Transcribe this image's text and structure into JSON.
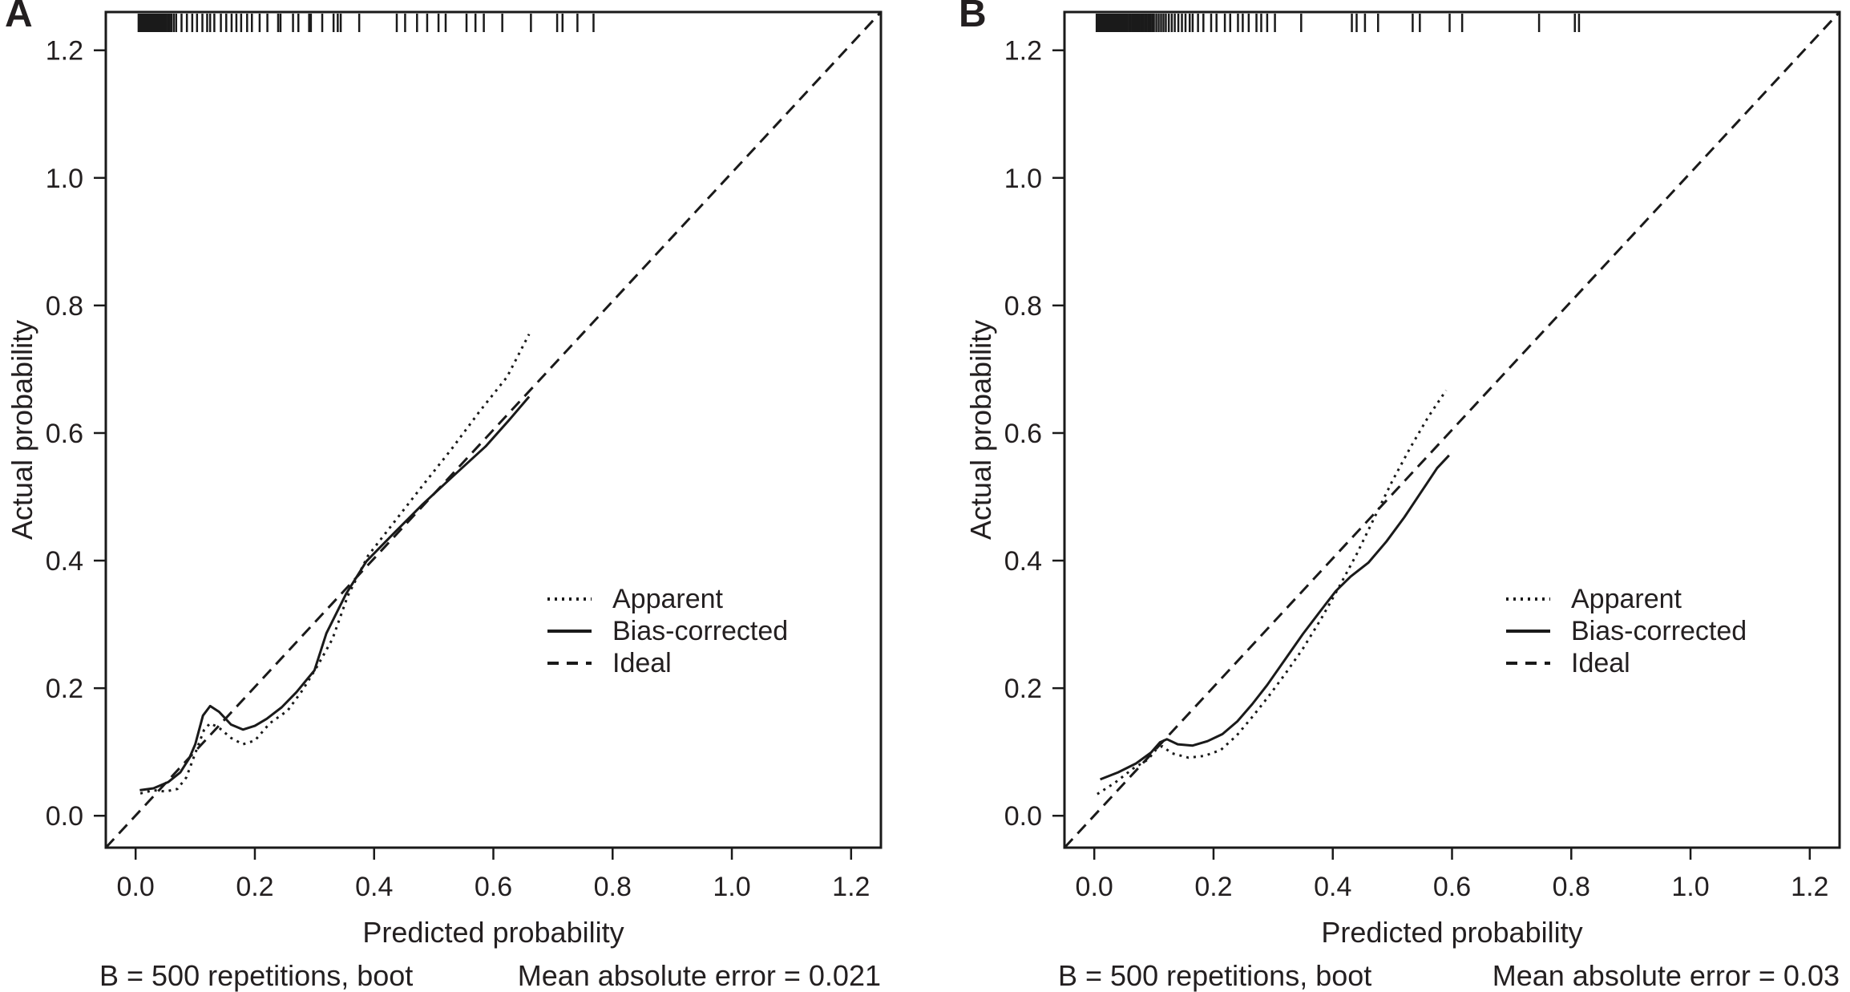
{
  "figure": {
    "ink_color": "#231f20",
    "line_color": "#1a1a1a",
    "background": "#ffffff"
  },
  "chart_data": [
    {
      "panel_label": "A",
      "type": "line",
      "title": "",
      "xlabel": "Predicted probability",
      "ylabel": "Actual probability",
      "xlim": [
        -0.05,
        1.25
      ],
      "ylim": [
        -0.05,
        1.26
      ],
      "xticks": [
        0.0,
        0.2,
        0.4,
        0.6,
        0.8,
        1.0,
        1.2
      ],
      "yticks": [
        0.0,
        0.2,
        0.4,
        0.6,
        0.8,
        1.0,
        1.2
      ],
      "grid": false,
      "legend_position": "right-center",
      "b_repetitions": 500,
      "mean_absolute_error": 0.021,
      "footer_left": "B = 500 repetitions, boot",
      "footer_right": "Mean absolute error = 0.021",
      "series": [
        {
          "name": "Apparent",
          "style": "dotted",
          "points": [
            [
              0.008,
              0.035
            ],
            [
              0.03,
              0.04
            ],
            [
              0.05,
              0.038
            ],
            [
              0.07,
              0.042
            ],
            [
              0.085,
              0.06
            ],
            [
              0.1,
              0.098
            ],
            [
              0.115,
              0.135
            ],
            [
              0.125,
              0.145
            ],
            [
              0.14,
              0.138
            ],
            [
              0.16,
              0.122
            ],
            [
              0.18,
              0.112
            ],
            [
              0.2,
              0.118
            ],
            [
              0.225,
              0.145
            ],
            [
              0.255,
              0.165
            ],
            [
              0.28,
              0.197
            ],
            [
              0.305,
              0.235
            ],
            [
              0.33,
              0.277
            ],
            [
              0.356,
              0.345
            ],
            [
              0.39,
              0.408
            ],
            [
              0.435,
              0.462
            ],
            [
              0.48,
              0.516
            ],
            [
              0.53,
              0.575
            ],
            [
              0.577,
              0.634
            ],
            [
              0.623,
              0.688
            ],
            [
              0.66,
              0.755
            ]
          ]
        },
        {
          "name": "Bias-corrected",
          "style": "solid",
          "points": [
            [
              0.007,
              0.04
            ],
            [
              0.03,
              0.043
            ],
            [
              0.055,
              0.053
            ],
            [
              0.075,
              0.068
            ],
            [
              0.09,
              0.09
            ],
            [
              0.1,
              0.112
            ],
            [
              0.113,
              0.157
            ],
            [
              0.125,
              0.172
            ],
            [
              0.14,
              0.163
            ],
            [
              0.16,
              0.143
            ],
            [
              0.18,
              0.135
            ],
            [
              0.2,
              0.141
            ],
            [
              0.22,
              0.152
            ],
            [
              0.245,
              0.17
            ],
            [
              0.27,
              0.194
            ],
            [
              0.3,
              0.228
            ],
            [
              0.32,
              0.286
            ],
            [
              0.353,
              0.348
            ],
            [
              0.387,
              0.399
            ],
            [
              0.427,
              0.437
            ],
            [
              0.48,
              0.487
            ],
            [
              0.533,
              0.533
            ],
            [
              0.587,
              0.579
            ],
            [
              0.627,
              0.621
            ],
            [
              0.66,
              0.657
            ]
          ]
        },
        {
          "name": "Ideal",
          "style": "dashed",
          "points": [
            [
              -0.05,
              -0.05
            ],
            [
              1.25,
              1.26
            ]
          ]
        }
      ],
      "rug_x": [
        0.005,
        0.007,
        0.009,
        0.011,
        0.013,
        0.015,
        0.017,
        0.019,
        0.021,
        0.023,
        0.025,
        0.027,
        0.029,
        0.031,
        0.033,
        0.035,
        0.037,
        0.039,
        0.041,
        0.043,
        0.045,
        0.047,
        0.049,
        0.051,
        0.054,
        0.057,
        0.06,
        0.064,
        0.068,
        0.077,
        0.086,
        0.095,
        0.103,
        0.112,
        0.12,
        0.125,
        0.132,
        0.143,
        0.152,
        0.161,
        0.169,
        0.177,
        0.187,
        0.195,
        0.208,
        0.221,
        0.239,
        0.243,
        0.264,
        0.273,
        0.291,
        0.294,
        0.313,
        0.332,
        0.339,
        0.344,
        0.375,
        0.438,
        0.452,
        0.472,
        0.489,
        0.508,
        0.52,
        0.555,
        0.57,
        0.584,
        0.615,
        0.663,
        0.707,
        0.716,
        0.741,
        0.768
      ]
    },
    {
      "panel_label": "B",
      "type": "line",
      "title": "",
      "xlabel": "Predicted probability",
      "ylabel": "Actual probability",
      "xlim": [
        -0.05,
        1.25
      ],
      "ylim": [
        -0.05,
        1.26
      ],
      "xticks": [
        0.0,
        0.2,
        0.4,
        0.6,
        0.8,
        1.0,
        1.2
      ],
      "yticks": [
        0.0,
        0.2,
        0.4,
        0.6,
        0.8,
        1.0,
        1.2
      ],
      "grid": false,
      "legend_position": "right-center",
      "b_repetitions": 500,
      "mean_absolute_error": 0.03,
      "footer_left": "B = 500 repetitions, boot",
      "footer_right": "Mean absolute error = 0.03",
      "series": [
        {
          "name": "Apparent",
          "style": "dotted",
          "points": [
            [
              0.005,
              0.034
            ],
            [
              0.035,
              0.052
            ],
            [
              0.065,
              0.074
            ],
            [
              0.09,
              0.088
            ],
            [
              0.103,
              0.103
            ],
            [
              0.114,
              0.109
            ],
            [
              0.13,
              0.098
            ],
            [
              0.158,
              0.091
            ],
            [
              0.185,
              0.094
            ],
            [
              0.212,
              0.103
            ],
            [
              0.239,
              0.126
            ],
            [
              0.266,
              0.156
            ],
            [
              0.293,
              0.188
            ],
            [
              0.32,
              0.222
            ],
            [
              0.35,
              0.262
            ],
            [
              0.38,
              0.308
            ],
            [
              0.41,
              0.358
            ],
            [
              0.44,
              0.41
            ],
            [
              0.467,
              0.462
            ],
            [
              0.5,
              0.525
            ],
            [
              0.53,
              0.577
            ],
            [
              0.56,
              0.625
            ],
            [
              0.59,
              0.667
            ]
          ]
        },
        {
          "name": "Bias-corrected",
          "style": "solid",
          "points": [
            [
              0.01,
              0.057
            ],
            [
              0.04,
              0.068
            ],
            [
              0.07,
              0.082
            ],
            [
              0.095,
              0.099
            ],
            [
              0.11,
              0.115
            ],
            [
              0.122,
              0.12
            ],
            [
              0.14,
              0.112
            ],
            [
              0.165,
              0.11
            ],
            [
              0.19,
              0.117
            ],
            [
              0.215,
              0.128
            ],
            [
              0.24,
              0.148
            ],
            [
              0.265,
              0.175
            ],
            [
              0.29,
              0.205
            ],
            [
              0.32,
              0.245
            ],
            [
              0.35,
              0.285
            ],
            [
              0.38,
              0.322
            ],
            [
              0.405,
              0.352
            ],
            [
              0.43,
              0.375
            ],
            [
              0.46,
              0.397
            ],
            [
              0.49,
              0.43
            ],
            [
              0.52,
              0.468
            ],
            [
              0.55,
              0.51
            ],
            [
              0.575,
              0.545
            ],
            [
              0.595,
              0.565
            ]
          ]
        },
        {
          "name": "Ideal",
          "style": "dashed",
          "points": [
            [
              -0.05,
              -0.05
            ],
            [
              1.25,
              1.26
            ]
          ]
        }
      ],
      "rug_x": [
        0.004,
        0.006,
        0.008,
        0.01,
        0.012,
        0.014,
        0.016,
        0.018,
        0.02,
        0.022,
        0.024,
        0.026,
        0.028,
        0.03,
        0.032,
        0.034,
        0.036,
        0.038,
        0.04,
        0.042,
        0.044,
        0.046,
        0.048,
        0.05,
        0.052,
        0.055,
        0.058,
        0.061,
        0.064,
        0.067,
        0.07,
        0.073,
        0.076,
        0.079,
        0.082,
        0.085,
        0.088,
        0.091,
        0.094,
        0.097,
        0.1,
        0.104,
        0.108,
        0.112,
        0.116,
        0.12,
        0.125,
        0.13,
        0.135,
        0.141,
        0.147,
        0.153,
        0.16,
        0.165,
        0.174,
        0.183,
        0.196,
        0.205,
        0.219,
        0.228,
        0.241,
        0.249,
        0.259,
        0.272,
        0.28,
        0.29,
        0.303,
        0.347,
        0.432,
        0.44,
        0.454,
        0.476,
        0.534,
        0.546,
        0.596,
        0.617,
        0.746,
        0.806,
        0.813
      ]
    }
  ]
}
